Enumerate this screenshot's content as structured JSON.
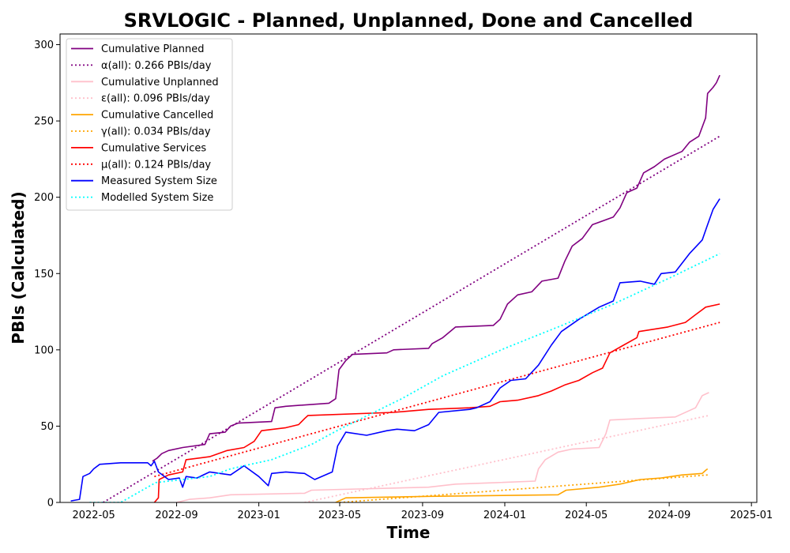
{
  "chart_data": {
    "type": "line",
    "title": "SRVLOGIC - Planned, Unplanned, Done  and Cancelled",
    "xlabel": "Time",
    "ylabel": "PBIs (Calculated)",
    "x_axis_type": "date",
    "xlim": [
      "2022-03-12",
      "2025-01-09"
    ],
    "ylim": [
      0,
      307
    ],
    "x_ticks": [
      "2022-05",
      "2022-09",
      "2023-01",
      "2023-05",
      "2023-09",
      "2024-01",
      "2024-05",
      "2024-09",
      "2025-01"
    ],
    "y_ticks": [
      0,
      50,
      100,
      150,
      200,
      250,
      300
    ],
    "grid": false,
    "legend_position": "top-left",
    "series": [
      {
        "name": "Cumulative Planned",
        "style": "solid",
        "color": "#800080",
        "points": [
          [
            "2022-07-27",
            27
          ],
          [
            "2022-08-03",
            29
          ],
          [
            "2022-08-10",
            32
          ],
          [
            "2022-08-20",
            34
          ],
          [
            "2022-09-10",
            36
          ],
          [
            "2022-10-13",
            38
          ],
          [
            "2022-10-20",
            45
          ],
          [
            "2022-11-12",
            46
          ],
          [
            "2022-11-20",
            50
          ],
          [
            "2022-12-01",
            52
          ],
          [
            "2023-01-20",
            53
          ],
          [
            "2023-01-25",
            62
          ],
          [
            "2023-02-10",
            63
          ],
          [
            "2023-04-15",
            65
          ],
          [
            "2023-04-25",
            68
          ],
          [
            "2023-04-30",
            87
          ],
          [
            "2023-05-10",
            93
          ],
          [
            "2023-05-20",
            97
          ],
          [
            "2023-07-10",
            98
          ],
          [
            "2023-07-20",
            100
          ],
          [
            "2023-09-10",
            101
          ],
          [
            "2023-09-15",
            104
          ],
          [
            "2023-10-01",
            108
          ],
          [
            "2023-10-20",
            115
          ],
          [
            "2023-12-15",
            116
          ],
          [
            "2023-12-25",
            120
          ],
          [
            "2024-01-05",
            130
          ],
          [
            "2024-01-20",
            136
          ],
          [
            "2024-02-10",
            138
          ],
          [
            "2024-02-25",
            145
          ],
          [
            "2024-03-20",
            147
          ],
          [
            "2024-03-30",
            158
          ],
          [
            "2024-04-10",
            168
          ],
          [
            "2024-04-25",
            173
          ],
          [
            "2024-05-10",
            182
          ],
          [
            "2024-06-10",
            187
          ],
          [
            "2024-06-20",
            193
          ],
          [
            "2024-06-30",
            203
          ],
          [
            "2024-07-15",
            206
          ],
          [
            "2024-07-25",
            216
          ],
          [
            "2024-08-10",
            220
          ],
          [
            "2024-08-25",
            225
          ],
          [
            "2024-09-20",
            230
          ],
          [
            "2024-10-01",
            236
          ],
          [
            "2024-10-15",
            240
          ],
          [
            "2024-10-25",
            252
          ],
          [
            "2024-10-28",
            268
          ],
          [
            "2024-11-05",
            272
          ],
          [
            "2024-11-10",
            275
          ],
          [
            "2024-11-15",
            280
          ]
        ]
      },
      {
        "name": "α(all): 0.266 PBIs/day",
        "style": "dotted",
        "color": "#800080",
        "points": [
          [
            "2022-05-15",
            0
          ],
          [
            "2024-11-15",
            240
          ]
        ]
      },
      {
        "name": "Cumulative Unplanned",
        "style": "solid",
        "color": "#ffc0cb",
        "points": [
          [
            "2022-09-01",
            0
          ],
          [
            "2022-09-20",
            2
          ],
          [
            "2022-10-20",
            3
          ],
          [
            "2022-11-20",
            5
          ],
          [
            "2023-03-10",
            6
          ],
          [
            "2023-03-20",
            8
          ],
          [
            "2023-09-10",
            10
          ],
          [
            "2023-10-20",
            12
          ],
          [
            "2023-12-20",
            13
          ],
          [
            "2024-02-15",
            14
          ],
          [
            "2024-02-20",
            22
          ],
          [
            "2024-03-01",
            28
          ],
          [
            "2024-03-20",
            33
          ],
          [
            "2024-04-10",
            35
          ],
          [
            "2024-05-20",
            36
          ],
          [
            "2024-05-30",
            45
          ],
          [
            "2024-06-05",
            54
          ],
          [
            "2024-07-20",
            55
          ],
          [
            "2024-09-10",
            56
          ],
          [
            "2024-10-10",
            62
          ],
          [
            "2024-10-20",
            70
          ],
          [
            "2024-10-30",
            72
          ]
        ]
      },
      {
        "name": "ε(all): 0.096 PBIs/day",
        "style": "dotted",
        "color": "#ffc0cb",
        "points": [
          [
            "2023-03-10",
            0
          ],
          [
            "2024-10-30",
            57
          ]
        ]
      },
      {
        "name": "Cumulative Cancelled",
        "style": "solid",
        "color": "#ffa500",
        "points": [
          [
            "2023-04-25",
            0
          ],
          [
            "2023-05-10",
            3
          ],
          [
            "2023-09-10",
            4
          ],
          [
            "2024-03-20",
            5
          ],
          [
            "2024-04-01",
            8
          ],
          [
            "2024-05-20",
            10
          ],
          [
            "2024-06-20",
            12
          ],
          [
            "2024-07-20",
            15
          ],
          [
            "2024-08-20",
            16
          ],
          [
            "2024-09-20",
            18
          ],
          [
            "2024-10-20",
            19
          ],
          [
            "2024-10-25",
            21
          ],
          [
            "2024-10-28",
            22
          ]
        ]
      },
      {
        "name": "γ(all): 0.034 PBIs/day",
        "style": "dotted",
        "color": "#ffa500",
        "points": [
          [
            "2023-05-01",
            0
          ],
          [
            "2024-10-28",
            18
          ]
        ]
      },
      {
        "name": "Cumulative Services",
        "style": "solid",
        "color": "#ff0000",
        "points": [
          [
            "2022-07-30",
            0
          ],
          [
            "2022-08-05",
            3
          ],
          [
            "2022-08-06",
            15
          ],
          [
            "2022-08-20",
            18
          ],
          [
            "2022-09-10",
            20
          ],
          [
            "2022-09-15",
            28
          ],
          [
            "2022-10-20",
            30
          ],
          [
            "2022-11-15",
            34
          ],
          [
            "2022-12-10",
            36
          ],
          [
            "2022-12-25",
            40
          ],
          [
            "2023-01-05",
            47
          ],
          [
            "2023-02-10",
            49
          ],
          [
            "2023-03-01",
            51
          ],
          [
            "2023-03-10",
            55
          ],
          [
            "2023-03-15",
            57
          ],
          [
            "2023-07-20",
            59
          ],
          [
            "2023-09-10",
            61
          ],
          [
            "2023-11-10",
            62
          ],
          [
            "2023-12-10",
            63
          ],
          [
            "2023-12-25",
            66
          ],
          [
            "2024-01-20",
            67
          ],
          [
            "2024-02-20",
            70
          ],
          [
            "2024-03-10",
            73
          ],
          [
            "2024-03-30",
            77
          ],
          [
            "2024-04-20",
            80
          ],
          [
            "2024-05-10",
            85
          ],
          [
            "2024-05-25",
            88
          ],
          [
            "2024-06-05",
            98
          ],
          [
            "2024-06-25",
            103
          ],
          [
            "2024-07-15",
            108
          ],
          [
            "2024-07-18",
            112
          ],
          [
            "2024-08-30",
            115
          ],
          [
            "2024-09-25",
            118
          ],
          [
            "2024-10-10",
            123
          ],
          [
            "2024-10-25",
            128
          ],
          [
            "2024-11-15",
            130
          ]
        ]
      },
      {
        "name": "μ(all): 0.124 PBIs/day",
        "style": "dotted",
        "color": "#ff0000",
        "points": [
          [
            "2022-07-30",
            17
          ],
          [
            "2024-11-15",
            118
          ]
        ]
      },
      {
        "name": "Measured System Size",
        "style": "solid",
        "color": "#0000ff",
        "points": [
          [
            "2022-03-28",
            1
          ],
          [
            "2022-04-10",
            2
          ],
          [
            "2022-04-15",
            17
          ],
          [
            "2022-04-25",
            19
          ],
          [
            "2022-05-01",
            22
          ],
          [
            "2022-05-10",
            25
          ],
          [
            "2022-06-10",
            26
          ],
          [
            "2022-07-20",
            26
          ],
          [
            "2022-07-25",
            24
          ],
          [
            "2022-07-30",
            27
          ],
          [
            "2022-08-05",
            20
          ],
          [
            "2022-08-20",
            15
          ],
          [
            "2022-09-05",
            16
          ],
          [
            "2022-09-10",
            10
          ],
          [
            "2022-09-15",
            17
          ],
          [
            "2022-10-01",
            16
          ],
          [
            "2022-10-20",
            20
          ],
          [
            "2022-11-20",
            18
          ],
          [
            "2022-12-10",
            24
          ],
          [
            "2023-01-01",
            17
          ],
          [
            "2023-01-15",
            11
          ],
          [
            "2023-01-20",
            19
          ],
          [
            "2023-02-10",
            20
          ],
          [
            "2023-03-10",
            19
          ],
          [
            "2023-03-25",
            15
          ],
          [
            "2023-04-20",
            20
          ],
          [
            "2023-04-28",
            37
          ],
          [
            "2023-05-10",
            46
          ],
          [
            "2023-06-10",
            44
          ],
          [
            "2023-07-10",
            47
          ],
          [
            "2023-07-25",
            48
          ],
          [
            "2023-08-20",
            47
          ],
          [
            "2023-09-10",
            51
          ],
          [
            "2023-09-25",
            59
          ],
          [
            "2023-11-10",
            61
          ],
          [
            "2023-11-20",
            62
          ],
          [
            "2023-12-10",
            66
          ],
          [
            "2023-12-25",
            75
          ],
          [
            "2024-01-10",
            80
          ],
          [
            "2024-02-01",
            81
          ],
          [
            "2024-02-20",
            90
          ],
          [
            "2024-03-10",
            103
          ],
          [
            "2024-03-25",
            112
          ],
          [
            "2024-04-20",
            120
          ],
          [
            "2024-05-20",
            128
          ],
          [
            "2024-06-10",
            132
          ],
          [
            "2024-06-20",
            144
          ],
          [
            "2024-07-20",
            145
          ],
          [
            "2024-08-10",
            143
          ],
          [
            "2024-08-20",
            150
          ],
          [
            "2024-09-10",
            151
          ],
          [
            "2024-10-01",
            163
          ],
          [
            "2024-10-20",
            172
          ],
          [
            "2024-10-28",
            182
          ],
          [
            "2024-11-05",
            192
          ],
          [
            "2024-11-15",
            199
          ]
        ]
      },
      {
        "name": "Modelled System Size",
        "style": "dotted",
        "color": "#00ffff",
        "points": [
          [
            "2022-04-25",
            0
          ],
          [
            "2022-06-10",
            0
          ],
          [
            "2022-08-01",
            13
          ],
          [
            "2022-09-10",
            15
          ],
          [
            "2022-10-20",
            17
          ],
          [
            "2022-11-20",
            22
          ],
          [
            "2022-12-20",
            25
          ],
          [
            "2023-01-20",
            28
          ],
          [
            "2023-03-20",
            38
          ],
          [
            "2023-05-01",
            48
          ],
          [
            "2023-08-01",
            68
          ],
          [
            "2023-10-01",
            83
          ],
          [
            "2024-01-01",
            101
          ],
          [
            "2024-03-20",
            115
          ],
          [
            "2024-06-10",
            130
          ],
          [
            "2024-09-01",
            147
          ],
          [
            "2024-11-15",
            163
          ]
        ]
      }
    ]
  }
}
